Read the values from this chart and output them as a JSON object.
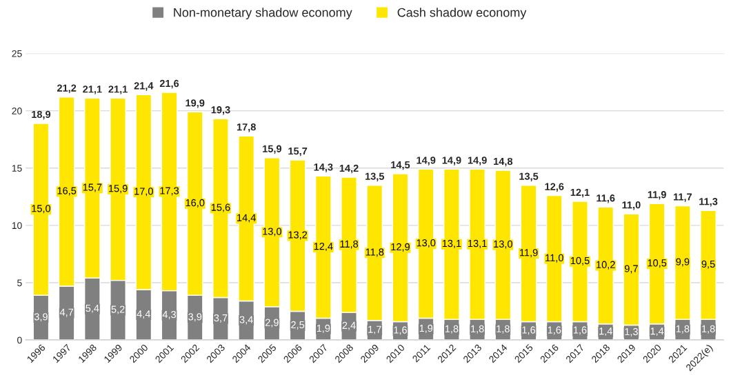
{
  "chart_data": {
    "type": "bar",
    "stacked": true,
    "categories": [
      "1996",
      "1997",
      "1998",
      "1999",
      "2000",
      "2001",
      "2002",
      "2003",
      "2004",
      "2005",
      "2006",
      "2007",
      "2008",
      "2009",
      "2010",
      "2011",
      "2012",
      "2013",
      "2014",
      "2015",
      "2016",
      "2017",
      "2018",
      "2019",
      "2020",
      "2021",
      "2022(e)"
    ],
    "series": [
      {
        "name": "Non-monetary shadow economy",
        "color": "#808080",
        "values": [
          3.9,
          4.7,
          5.4,
          5.2,
          4.4,
          4.3,
          3.9,
          3.7,
          3.4,
          2.9,
          2.5,
          1.9,
          2.4,
          1.7,
          1.6,
          1.9,
          1.8,
          1.8,
          1.8,
          1.6,
          1.6,
          1.6,
          1.4,
          1.3,
          1.4,
          1.8,
          1.8
        ],
        "value_labels": [
          "3,9",
          "4,7",
          "5,4",
          "5,2",
          "4,4",
          "4,3",
          "3,9",
          "3,7",
          "3,4",
          "2,9",
          "2,5",
          "1,9",
          "2,4",
          "1,7",
          "1,6",
          "1,9",
          "1,8",
          "1,8",
          "1,8",
          "1,6",
          "1,6",
          "1,6",
          "1,4",
          "1,3",
          "1,4",
          "1,8",
          "1,8"
        ]
      },
      {
        "name": "Cash shadow economy",
        "color": "#ffe600",
        "values": [
          15.0,
          16.5,
          15.7,
          15.9,
          17.0,
          17.3,
          16.0,
          15.6,
          14.4,
          13.0,
          13.2,
          12.4,
          11.8,
          11.8,
          12.9,
          13.0,
          13.1,
          13.1,
          13.0,
          11.9,
          11.0,
          10.5,
          10.2,
          9.7,
          10.5,
          9.9,
          9.5
        ],
        "value_labels": [
          "15,0",
          "16,5",
          "15,7",
          "15,9",
          "17,0",
          "17,3",
          "16,0",
          "15,6",
          "14,4",
          "13,0",
          "13,2",
          "12,4",
          "11,8",
          "11,8",
          "12,9",
          "13,0",
          "13,1",
          "13,1",
          "13,0",
          "11,9",
          "11,0",
          "10,5",
          "10,2",
          "9,7",
          "10,5",
          "9,9",
          "9,5"
        ]
      }
    ],
    "totals": [
      "18,9",
      "21,2",
      "21,1",
      "21,1",
      "21,4",
      "21,6",
      "19,9",
      "19,3",
      "17,8",
      "15,9",
      "15,7",
      "14,3",
      "14,2",
      "13,5",
      "14,5",
      "14,9",
      "14,9",
      "14,9",
      "14,8",
      "13,5",
      "12,6",
      "12,1",
      "11,6",
      "11,0",
      "11,9",
      "11,7",
      "11,3"
    ],
    "ylim": [
      0,
      25
    ],
    "yticks": [
      0,
      5,
      10,
      15,
      20,
      25
    ],
    "grid": "y",
    "legend": "top"
  }
}
